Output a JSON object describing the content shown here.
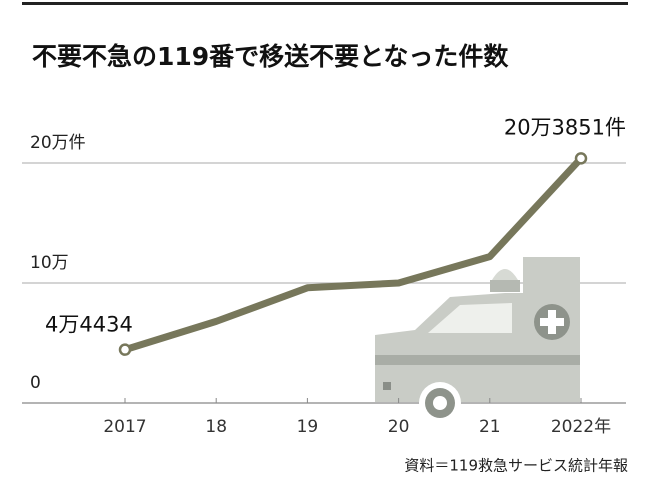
{
  "chart_data": {
    "type": "line",
    "title": "不要不急の119番で移送不要となった件数",
    "source": "資料＝119救急サービス統計年報",
    "categories": [
      "2017",
      "18",
      "19",
      "20",
      "21",
      "2022年"
    ],
    "series": [
      {
        "color": "#77775b",
        "values": [
          44434,
          68000,
          96000,
          100000,
          122000,
          203851
        ],
        "value_labels": [
          "4万4434",
          null,
          null,
          null,
          null,
          "20万3851件"
        ]
      }
    ],
    "ylim": [
      0,
      220000
    ],
    "yticks": [
      {
        "value": 0,
        "label": "0"
      },
      {
        "value": 100000,
        "label": "10万"
      },
      {
        "value": 200000,
        "label": "20万件"
      }
    ],
    "grid": true
  }
}
